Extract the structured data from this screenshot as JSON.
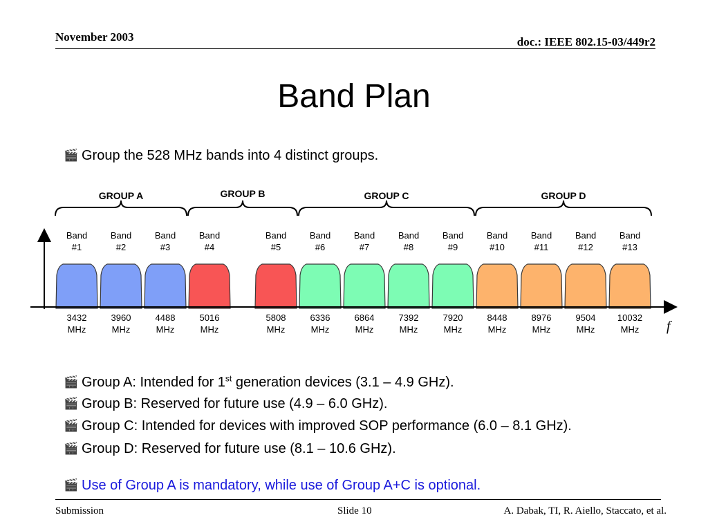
{
  "header": {
    "date": "November 2003",
    "doc": "doc.: IEEE 802.15-03/449r2"
  },
  "title": "Band Plan",
  "intro_bullet": "Group the 528 MHz bands into 4 distinct groups.",
  "groups": [
    {
      "label": "GROUP A",
      "color": "#7f9ff8"
    },
    {
      "label": "GROUP B",
      "color": "#f85555"
    },
    {
      "label": "GROUP C",
      "color": "#7dfcb4"
    },
    {
      "label": "GROUP D",
      "color": "#fdb36c"
    }
  ],
  "bands": [
    {
      "n": "#1",
      "freq": "3432",
      "group": 0
    },
    {
      "n": "#2",
      "freq": "3960",
      "group": 0
    },
    {
      "n": "#3",
      "freq": "4488",
      "group": 0
    },
    {
      "n": "#4",
      "freq": "5016",
      "group": 1
    },
    {
      "n": "#5",
      "freq": "5808",
      "group": 1
    },
    {
      "n": "#6",
      "freq": "6336",
      "group": 2
    },
    {
      "n": "#7",
      "freq": "6864",
      "group": 2
    },
    {
      "n": "#8",
      "freq": "7392",
      "group": 2
    },
    {
      "n": "#9",
      "freq": "7920",
      "group": 2
    },
    {
      "n": "#10",
      "freq": "8448",
      "group": 3
    },
    {
      "n": "#11",
      "freq": "8976",
      "group": 3
    },
    {
      "n": "#12",
      "freq": "9504",
      "group": 3
    },
    {
      "n": "#13",
      "freq": "10032",
      "group": 3
    }
  ],
  "band_word": "Band",
  "unit": "MHz",
  "axis_label": "f",
  "bullets": {
    "a_pre": "Group A: Intended for 1",
    "a_sup": "st",
    "a_post": " generation devices (3.1 – 4.9 GHz).",
    "b": "Group B: Reserved for future use (4.9 – 6.0 GHz).",
    "c": "Group C: Intended for devices with improved SOP performance (6.0 – 8.1 GHz).",
    "d": "Group D: Reserved for future use (8.1 – 10.6 GHz).",
    "note": "Use of Group A is mandatory, while use of Group A+C is optional."
  },
  "bullet_icon": "clapperboard-icon",
  "footer": {
    "left": "Submission",
    "center": "Slide 10",
    "right": "A. Dabak, TI, R. Aiello, Staccato, et al."
  }
}
